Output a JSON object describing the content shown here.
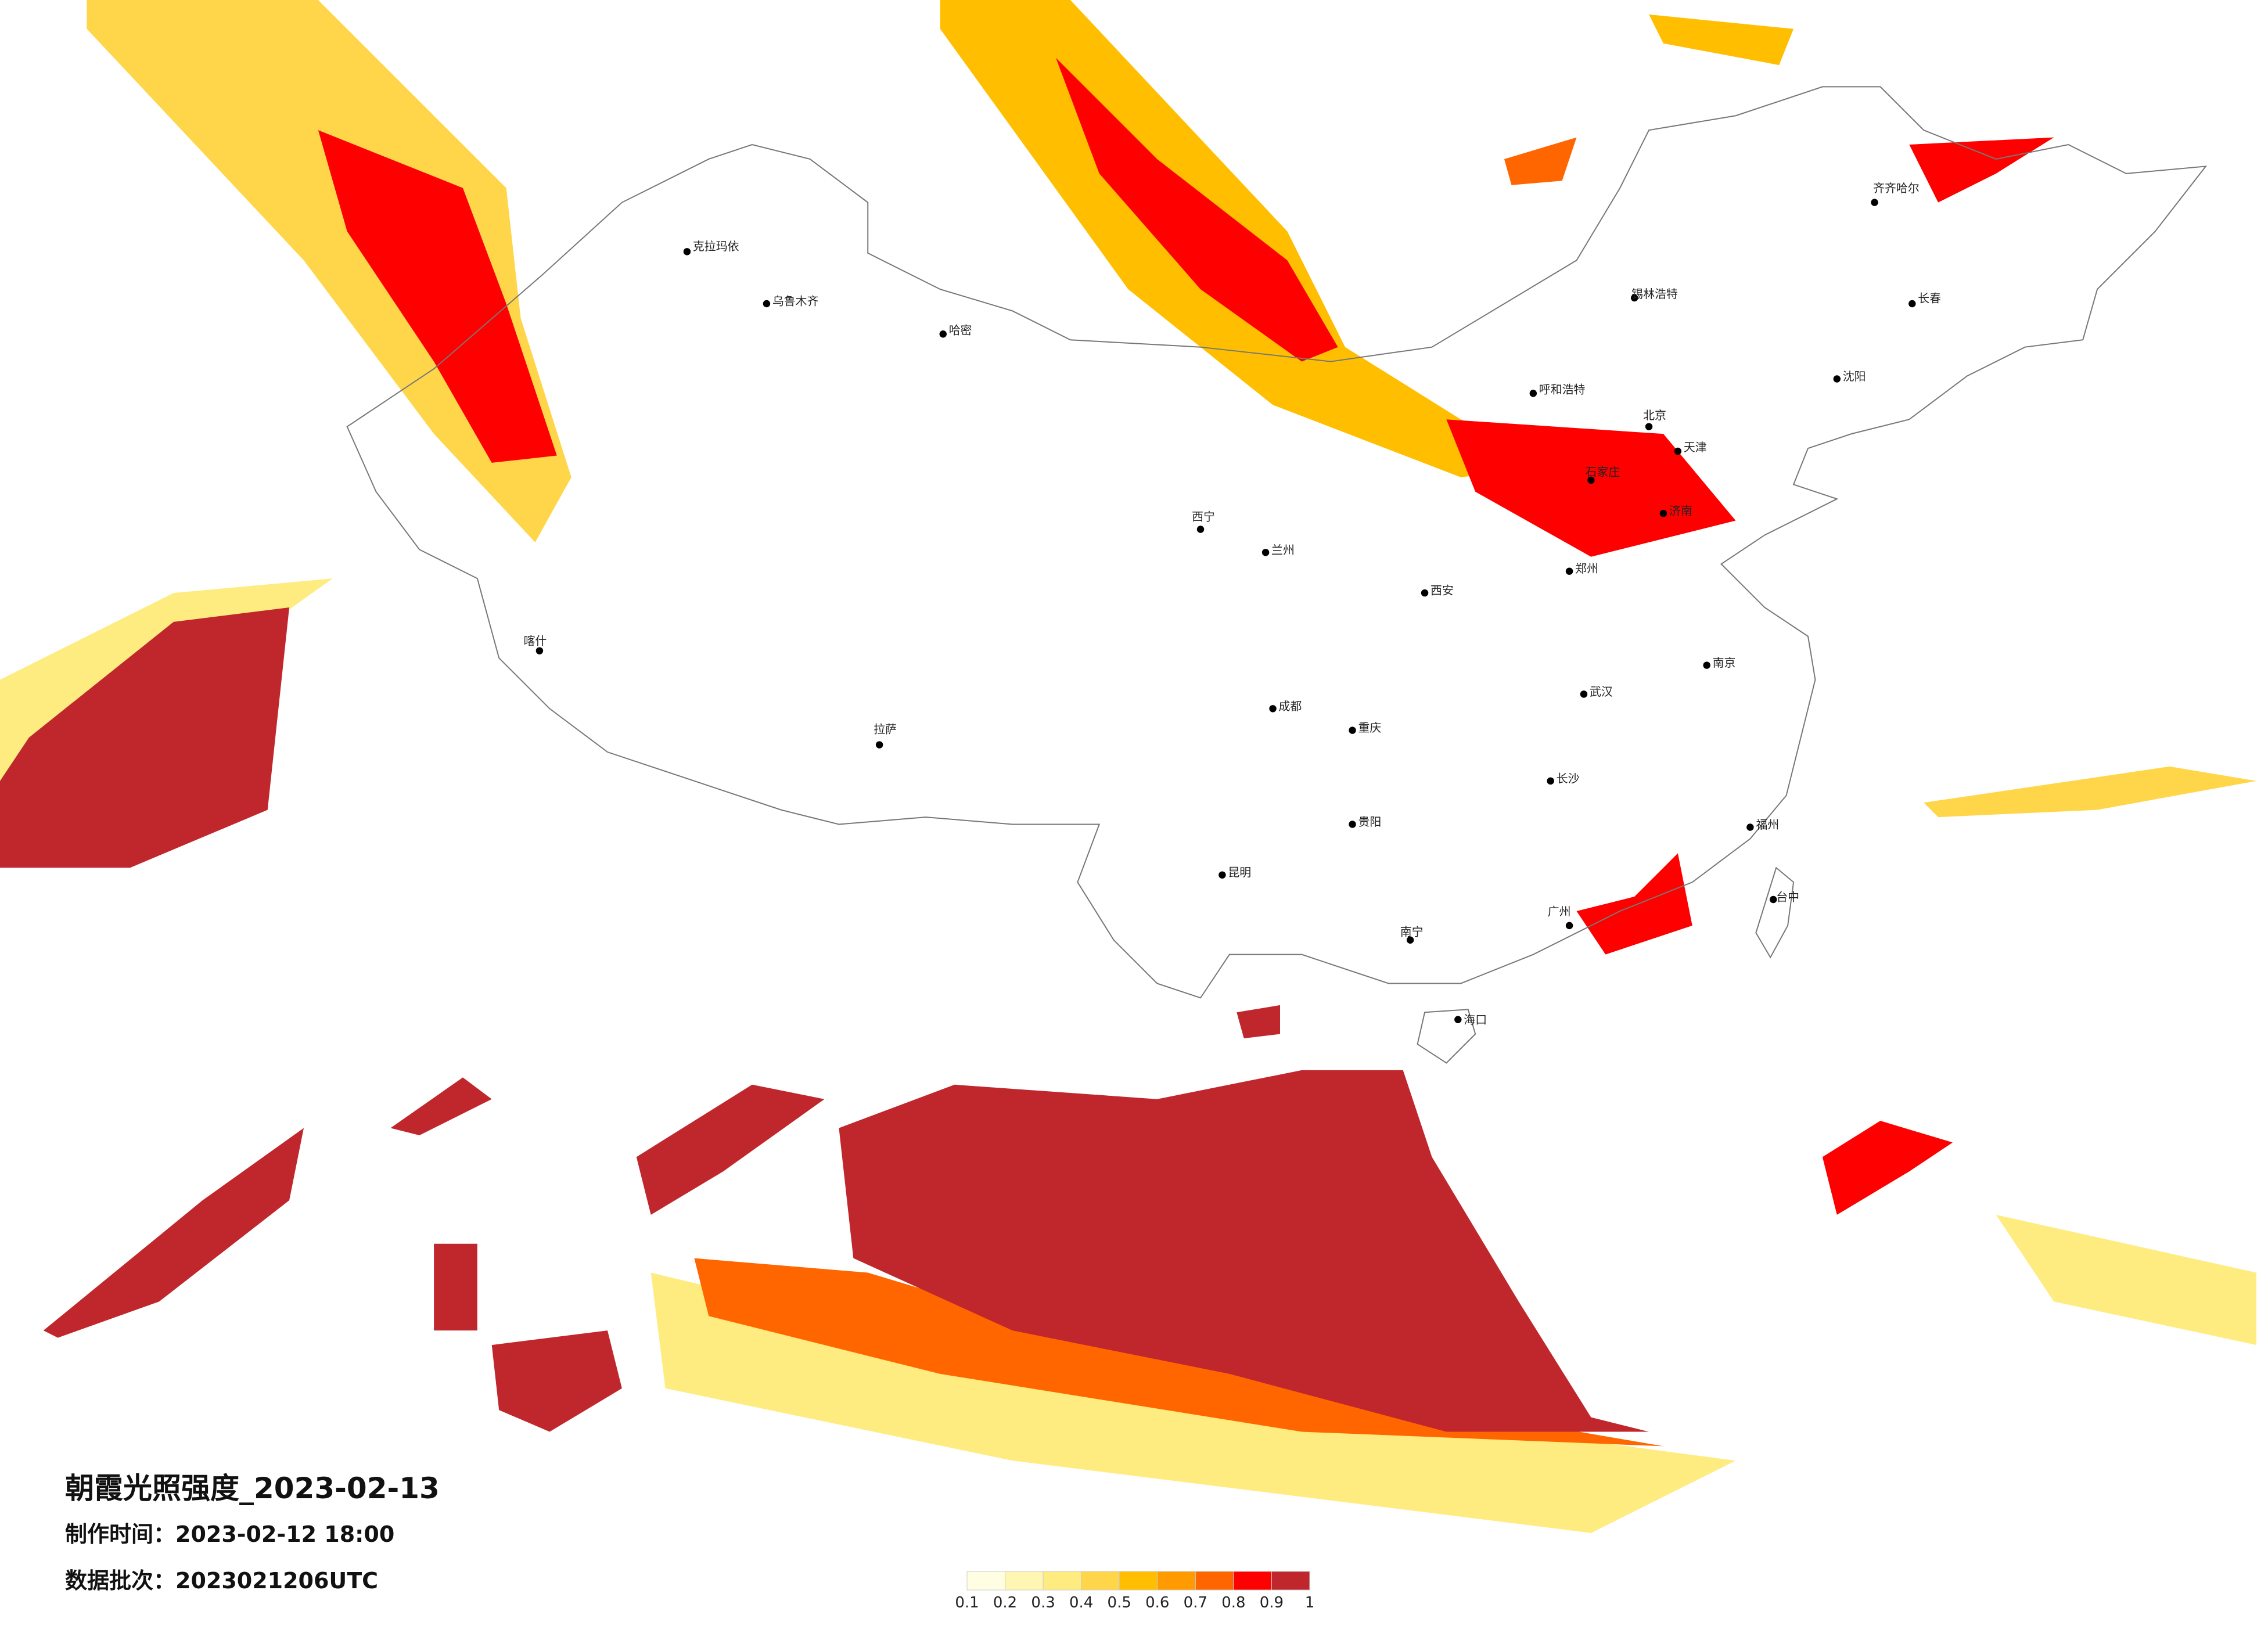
{
  "title": "朝霞光照强度_2023-02-13",
  "production_time": "制作时间：2023-02-12 18:00",
  "data_batch": "数据批次：2023021206UTC",
  "legend": {
    "colors": [
      "#fffde2",
      "#fff6b3",
      "#ffec80",
      "#ffd64a",
      "#ffbf00",
      "#ff9a00",
      "#ff6600",
      "#ff0000",
      "#c0272d"
    ],
    "ticks": [
      0.1,
      0.2,
      0.3,
      0.4,
      0.5,
      0.6,
      0.7,
      0.8,
      0.9,
      1
    ]
  },
  "cities": [
    "克拉玛依",
    "乌鲁木齐",
    "哈密",
    "喀什",
    "拉萨",
    "西宁",
    "呼和浩特",
    "北京",
    "天津",
    "石家庄",
    "济南",
    "郑州",
    "西安",
    "齐齐哈尔",
    "长春",
    "锡林浩特",
    "南京",
    "武汉",
    "长沙",
    "重庆",
    "成都",
    "贵阳",
    "昆明",
    "南宁",
    "广州",
    "福州",
    "台中",
    "海口",
    "兰州",
    "沈阳"
  ]
}
